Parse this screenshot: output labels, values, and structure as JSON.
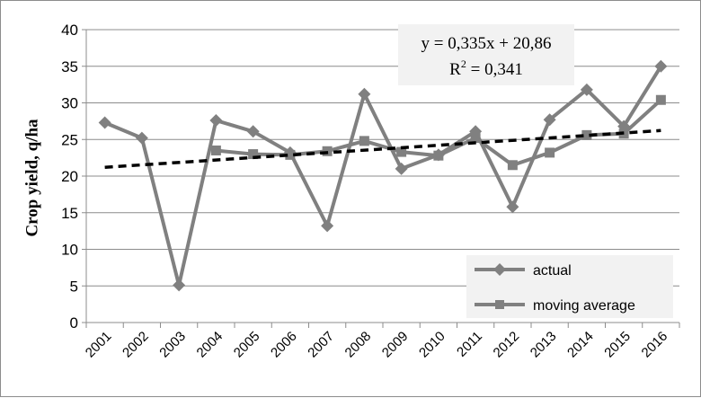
{
  "chart_data": {
    "type": "line",
    "title": "",
    "xlabel": "",
    "ylabel": "Crop yield, q/ha",
    "ylim": [
      0,
      40
    ],
    "yticks": [
      0,
      5,
      10,
      15,
      20,
      25,
      30,
      35,
      40
    ],
    "grid": "horizontal",
    "legend_position": "bottom-right",
    "categories": [
      "2001",
      "2002",
      "2003",
      "2004",
      "2005",
      "2006",
      "2007",
      "2008",
      "2009",
      "2010",
      "2011",
      "2012",
      "2013",
      "2014",
      "2015",
      "2016"
    ],
    "series": [
      {
        "name": "actual",
        "marker": "diamond",
        "color": "#808080",
        "values": [
          27.3,
          25.2,
          5.1,
          27.6,
          26.1,
          23.2,
          13.2,
          31.2,
          21.0,
          22.9,
          26.1,
          15.8,
          27.7,
          31.8,
          26.8,
          35.0
        ]
      },
      {
        "name": "moving average",
        "marker": "square",
        "color": "#808080",
        "values": [
          null,
          null,
          null,
          23.5,
          23.0,
          22.9,
          23.4,
          24.8,
          23.3,
          22.8,
          25.2,
          21.5,
          23.2,
          25.6,
          25.8,
          30.4
        ]
      }
    ],
    "trendline": {
      "color": "#000000",
      "style": "dashed",
      "slope": 0.335,
      "intercept": 20.86,
      "equation_line1": "y = 0,335x + 20,86",
      "equation_line2_prefix": "R",
      "equation_line2_sup": "2",
      "equation_line2_suffix": " = 0,341"
    }
  }
}
